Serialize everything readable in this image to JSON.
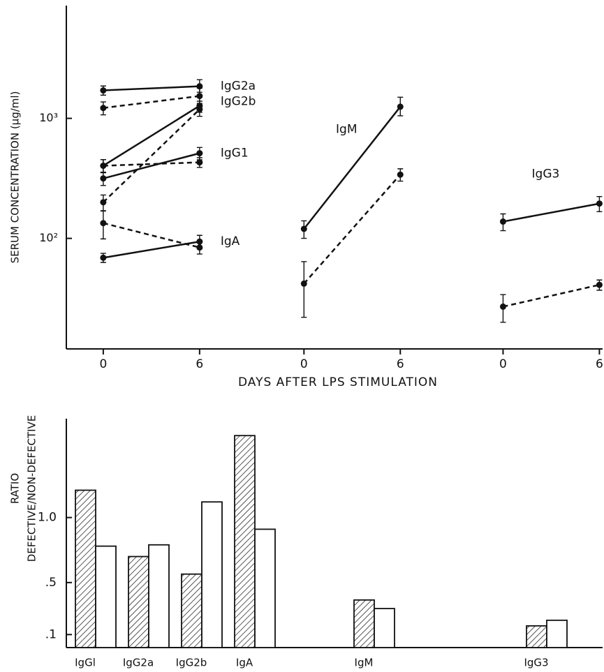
{
  "chart_data": [
    {
      "type": "line",
      "yscale": "log",
      "ylabel": "SERUM CONCENTRATION (µg/ml)",
      "xlabel": "DAYS AFTER LPS STIMULATION",
      "ylim": [
        12,
        8700
      ],
      "yticks": [
        {
          "value": 100,
          "label": "10²"
        },
        {
          "value": 1000,
          "label": "10³"
        }
      ],
      "panels": [
        {
          "xlim": [
            -2.3,
            9.2
          ],
          "x": [
            0,
            6
          ],
          "xticks": [
            0,
            6
          ],
          "series": [
            {
              "label": "IgG2a",
              "color": "#111",
              "dash": false,
              "values": [
                1710,
                1850
              ],
              "errors": [
                [
                  150,
                  150
                ],
                [
                  200,
                  250
                ]
              ]
            },
            {
              "label": "IgG2b",
              "color": "#111",
              "dash": true,
              "values": [
                1220,
                1535
              ],
              "errors": [
                [
                  150,
                  150
                ],
                [
                  200,
                  250
                ]
              ]
            },
            {
              "color": "#111",
              "dash": false,
              "values": [
                403,
                1273
              ],
              "errors": [
                [
                  50,
                  50
                ],
                [
                  150,
                  250
                ]
              ]
            },
            {
              "color": "#111",
              "dash": true,
              "values": [
                200,
                1190
              ],
              "errors": [
                [
                  30,
                  30
                ],
                [
                  150,
                  200
                ]
              ]
            },
            {
              "label": "IgG1",
              "color": "#111",
              "dash": false,
              "values": [
                316,
                512
              ],
              "errors": [
                [
                  40,
                  40
                ],
                [
                  60,
                  60
                ]
              ]
            },
            {
              "color": "#111",
              "dash": true,
              "values": [
                403,
                430
              ],
              "errors": [
                [
                  50,
                  50
                ],
                [
                  40,
                  40
                ]
              ]
            },
            {
              "color": "#111",
              "dash": true,
              "values": [
                134,
                84
              ],
              "errors": [
                [
                  35,
                  35
                ],
                [
                  10,
                  10
                ]
              ]
            },
            {
              "label": "IgA",
              "color": "#111",
              "dash": false,
              "values": [
                69,
                94
              ],
              "errors": [
                [
                  6,
                  6
                ],
                [
                  12,
                  12
                ]
              ]
            }
          ]
        },
        {
          "xlim": [
            -3.3,
            9.3
          ],
          "x": [
            0,
            6
          ],
          "xticks": [
            0,
            6
          ],
          "label": "IgM",
          "series": [
            {
              "color": "#111",
              "dash": false,
              "values": [
                120,
                1250
              ],
              "errors": [
                [
                  20,
                  20
                ],
                [
                  200,
                  250
                ]
              ]
            },
            {
              "color": "#111",
              "dash": true,
              "values": [
                42,
                340
              ],
              "errors": [
                [
                  20,
                  22
                ],
                [
                  40,
                  40
                ]
              ]
            }
          ]
        },
        {
          "xlim": [
            -3.1,
            6.2
          ],
          "x": [
            0,
            6
          ],
          "xticks": [
            0,
            6
          ],
          "label": "IgG3",
          "series": [
            {
              "color": "#111",
              "dash": false,
              "values": [
                138,
                195
              ],
              "errors": [
                [
                  22,
                  22
                ],
                [
                  28,
                  28
                ]
              ]
            },
            {
              "color": "#111",
              "dash": true,
              "values": [
                27,
                41
              ],
              "errors": [
                [
                  7,
                  7
                ],
                [
                  4,
                  4
                ]
              ]
            }
          ]
        }
      ]
    },
    {
      "type": "bar",
      "ylabel": [
        "RATIO",
        "DEFECTIVE/NON-DEFECTIVE"
      ],
      "ylim": [
        0,
        1.76
      ],
      "yticks": [
        {
          "value": 0.1,
          "label": ".1"
        },
        {
          "value": 0.5,
          "label": ".5"
        },
        {
          "value": 1.0,
          "label": "1.0"
        }
      ],
      "categories": [
        "IgGl",
        "IgG2a",
        "IgG2b",
        "IgA",
        "IgM",
        "IgG3"
      ],
      "series": [
        {
          "color": "#111",
          "hatch": true,
          "values": [
            1.21,
            0.7,
            0.565,
            1.63,
            0.366,
            0.167
          ]
        },
        {
          "color": "#ffffff",
          "hatch": false,
          "values": [
            0.78,
            0.79,
            1.12,
            0.91,
            0.3,
            0.21
          ]
        }
      ]
    }
  ]
}
